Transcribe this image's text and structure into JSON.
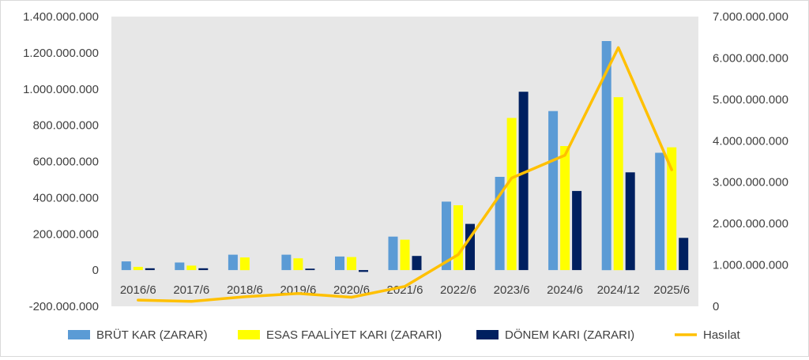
{
  "chart_data": {
    "type": "bar",
    "categories": [
      "2016/6",
      "2017/6",
      "2018/6",
      "2019/6",
      "2020/6",
      "2021/6",
      "2022/6",
      "2023/6",
      "2024/6",
      "2024/12",
      "2025/6"
    ],
    "series": [
      {
        "name": "BRÜT KAR (ZARAR)",
        "type": "bar",
        "axis": "left",
        "color": "#5B9BD5",
        "values": [
          48000000,
          42000000,
          85000000,
          85000000,
          75000000,
          185000000,
          378000000,
          515000000,
          878000000,
          1265000000,
          648000000
        ]
      },
      {
        "name": "ESAS FAALİYET KARI (ZARARI)",
        "type": "bar",
        "axis": "left",
        "color": "#FFFF00",
        "values": [
          18000000,
          25000000,
          70000000,
          65000000,
          72000000,
          168000000,
          358000000,
          840000000,
          685000000,
          955000000,
          678000000
        ]
      },
      {
        "name": "DÖNEM KARI (ZARARI)",
        "type": "bar",
        "axis": "left",
        "color": "#002060",
        "values": [
          10000000,
          10000000,
          0,
          8000000,
          -10000000,
          78000000,
          255000000,
          985000000,
          437000000,
          540000000,
          178000000
        ]
      },
      {
        "name": "Hasılat",
        "type": "line",
        "axis": "right",
        "color": "#FFC000",
        "values": [
          150000000,
          120000000,
          230000000,
          310000000,
          220000000,
          480000000,
          1250000000,
          3100000000,
          3650000000,
          6250000000,
          3300000000
        ]
      }
    ],
    "y_left": {
      "ylim": [
        -200000000,
        1400000000
      ],
      "ticks": [
        "-200.000.000",
        "0",
        "200.000.000",
        "400.000.000",
        "600.000.000",
        "800.000.000",
        "1.000.000.000",
        "1.200.000.000",
        "1.400.000.000"
      ]
    },
    "y_right": {
      "ylim": [
        0,
        7000000000
      ],
      "ticks": [
        "0",
        "1.000.000.000",
        "2.000.000.000",
        "3.000.000.000",
        "4.000.000.000",
        "5.000.000.000",
        "6.000.000.000",
        "7.000.000.000"
      ]
    },
    "plot_background": "#E7E7E7",
    "legend_position": "bottom",
    "grid": false
  }
}
